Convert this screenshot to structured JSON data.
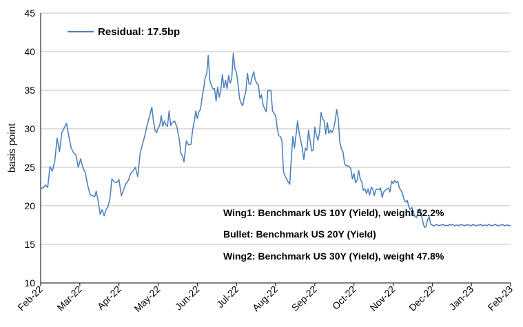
{
  "chart_data": {
    "type": "line",
    "title": "",
    "xlabel": "",
    "ylabel": "basis point",
    "ylim": [
      10,
      45
    ],
    "yticks": [
      "10",
      "15",
      "20",
      "25",
      "30",
      "35",
      "40",
      "45"
    ],
    "x_tick_labels": [
      "Feb-22",
      "Mar-22",
      "Apr-22",
      "May-22",
      "Jun-22",
      "Jul-22",
      "Aug-22",
      "Sep-22",
      "Oct-22",
      "Nov-22",
      "Dec-22",
      "Jan-23",
      "Feb-23"
    ],
    "grid": "horizontal",
    "legend_position": "top-left",
    "line_color": "#4F81BD",
    "annotations": [
      "Wing1: Benchmark US 10Y (Yield), weight 52.2%",
      "Bullet: Benchmark US 20Y (Yield)",
      "Wing2: Benchmark US 30Y (Yield), weight 47.8%"
    ],
    "series": [
      {
        "name": "Residual: 17.5bp",
        "points": [
          [
            0.0,
            22.3
          ],
          [
            0.04,
            22.3
          ],
          [
            0.08,
            22.4
          ],
          [
            0.12,
            22.7
          ],
          [
            0.18,
            22.4
          ],
          [
            0.24,
            25.1
          ],
          [
            0.3,
            24.5
          ],
          [
            0.36,
            25.8
          ],
          [
            0.42,
            28.8
          ],
          [
            0.48,
            27.0
          ],
          [
            0.54,
            29.5
          ],
          [
            0.6,
            30.1
          ],
          [
            0.66,
            30.7
          ],
          [
            0.72,
            29.0
          ],
          [
            0.78,
            27.5
          ],
          [
            0.84,
            26.9
          ],
          [
            0.9,
            26.6
          ],
          [
            0.96,
            25.0
          ],
          [
            1.02,
            26.1
          ],
          [
            1.08,
            24.9
          ],
          [
            1.14,
            24.3
          ],
          [
            1.2,
            22.7
          ],
          [
            1.26,
            21.5
          ],
          [
            1.32,
            21.3
          ],
          [
            1.38,
            21.2
          ],
          [
            1.42,
            21.9
          ],
          [
            1.47,
            20.6
          ],
          [
            1.52,
            18.9
          ],
          [
            1.57,
            19.5
          ],
          [
            1.62,
            18.7
          ],
          [
            1.67,
            19.5
          ],
          [
            1.72,
            19.9
          ],
          [
            1.77,
            21.0
          ],
          [
            1.82,
            23.5
          ],
          [
            1.88,
            23.1
          ],
          [
            1.94,
            23.0
          ],
          [
            2.0,
            23.4
          ],
          [
            2.06,
            21.3
          ],
          [
            2.12,
            22.1
          ],
          [
            2.18,
            22.9
          ],
          [
            2.24,
            23.3
          ],
          [
            2.3,
            24.2
          ],
          [
            2.36,
            24.5
          ],
          [
            2.42,
            25.0
          ],
          [
            2.48,
            23.8
          ],
          [
            2.54,
            26.8
          ],
          [
            2.6,
            28.0
          ],
          [
            2.66,
            29.1
          ],
          [
            2.72,
            30.5
          ],
          [
            2.78,
            31.6
          ],
          [
            2.84,
            32.8
          ],
          [
            2.88,
            31.0
          ],
          [
            2.92,
            29.8
          ],
          [
            2.96,
            29.5
          ],
          [
            3.0,
            30.1
          ],
          [
            3.04,
            30.4
          ],
          [
            3.08,
            31.7
          ],
          [
            3.12,
            30.3
          ],
          [
            3.16,
            31.0
          ],
          [
            3.2,
            30.5
          ],
          [
            3.24,
            30.3
          ],
          [
            3.28,
            32.3
          ],
          [
            3.32,
            30.4
          ],
          [
            3.36,
            30.8
          ],
          [
            3.42,
            31.0
          ],
          [
            3.48,
            30.2
          ],
          [
            3.54,
            28.6
          ],
          [
            3.58,
            26.8
          ],
          [
            3.62,
            26.5
          ],
          [
            3.66,
            25.7
          ],
          [
            3.72,
            28.4
          ],
          [
            3.78,
            27.9
          ],
          [
            3.84,
            28.0
          ],
          [
            3.88,
            29.8
          ],
          [
            3.92,
            30.9
          ],
          [
            3.96,
            32.3
          ],
          [
            4.0,
            31.3
          ],
          [
            4.04,
            32.2
          ],
          [
            4.08,
            32.5
          ],
          [
            4.12,
            34.0
          ],
          [
            4.16,
            35.1
          ],
          [
            4.2,
            36.6
          ],
          [
            4.24,
            37.1
          ],
          [
            4.28,
            39.5
          ],
          [
            4.32,
            36.3
          ],
          [
            4.36,
            35.6
          ],
          [
            4.4,
            35.2
          ],
          [
            4.44,
            35.2
          ],
          [
            4.48,
            33.6
          ],
          [
            4.52,
            35.4
          ],
          [
            4.56,
            34.1
          ],
          [
            4.6,
            35.0
          ],
          [
            4.64,
            37.0
          ],
          [
            4.68,
            35.3
          ],
          [
            4.72,
            36.3
          ],
          [
            4.76,
            35.2
          ],
          [
            4.8,
            36.9
          ],
          [
            4.84,
            35.9
          ],
          [
            4.88,
            36.5
          ],
          [
            4.92,
            39.8
          ],
          [
            4.96,
            37.8
          ],
          [
            5.0,
            37.3
          ],
          [
            5.04,
            35.8
          ],
          [
            5.08,
            33.9
          ],
          [
            5.12,
            33.3
          ],
          [
            5.16,
            33.0
          ],
          [
            5.2,
            34.1
          ],
          [
            5.24,
            34.8
          ],
          [
            5.28,
            37.2
          ],
          [
            5.32,
            35.8
          ],
          [
            5.36,
            35.8
          ],
          [
            5.4,
            36.7
          ],
          [
            5.44,
            37.4
          ],
          [
            5.48,
            36.3
          ],
          [
            5.52,
            35.9
          ],
          [
            5.56,
            35.7
          ],
          [
            5.6,
            33.9
          ],
          [
            5.64,
            34.4
          ],
          [
            5.68,
            33.1
          ],
          [
            5.72,
            32.6
          ],
          [
            5.76,
            32.2
          ],
          [
            5.8,
            34.9
          ],
          [
            5.84,
            35.0
          ],
          [
            5.88,
            34.9
          ],
          [
            5.92,
            32.3
          ],
          [
            5.96,
            32.0
          ],
          [
            6.0,
            31.7
          ],
          [
            6.04,
            30.1
          ],
          [
            6.08,
            29.1
          ],
          [
            6.12,
            29.0
          ],
          [
            6.16,
            28.5
          ],
          [
            6.2,
            24.4
          ],
          [
            6.24,
            23.9
          ],
          [
            6.28,
            23.5
          ],
          [
            6.32,
            23.1
          ],
          [
            6.36,
            22.8
          ],
          [
            6.4,
            26.1
          ],
          [
            6.44,
            29.0
          ],
          [
            6.48,
            27.5
          ],
          [
            6.52,
            29.2
          ],
          [
            6.56,
            31.0
          ],
          [
            6.6,
            29.5
          ],
          [
            6.64,
            28.5
          ],
          [
            6.68,
            27.5
          ],
          [
            6.72,
            26.0
          ],
          [
            6.76,
            27.5
          ],
          [
            6.8,
            27.2
          ],
          [
            6.84,
            29.8
          ],
          [
            6.88,
            28.5
          ],
          [
            6.92,
            27.1
          ],
          [
            6.96,
            27.3
          ],
          [
            7.0,
            30.2
          ],
          [
            7.04,
            29.2
          ],
          [
            7.08,
            28.5
          ],
          [
            7.12,
            29.5
          ],
          [
            7.16,
            32.1
          ],
          [
            7.2,
            31.3
          ],
          [
            7.24,
            31.0
          ],
          [
            7.28,
            29.3
          ],
          [
            7.32,
            30.8
          ],
          [
            7.36,
            29.4
          ],
          [
            7.4,
            29.8
          ],
          [
            7.44,
            29.5
          ],
          [
            7.48,
            30.0
          ],
          [
            7.52,
            31.0
          ],
          [
            7.56,
            32.5
          ],
          [
            7.6,
            31.3
          ],
          [
            7.64,
            28.2
          ],
          [
            7.68,
            27.4
          ],
          [
            7.72,
            27.0
          ],
          [
            7.76,
            25.5
          ],
          [
            7.8,
            25.2
          ],
          [
            7.84,
            25.2
          ],
          [
            7.88,
            25.1
          ],
          [
            7.92,
            24.8
          ],
          [
            7.96,
            23.5
          ],
          [
            8.0,
            24.2
          ],
          [
            8.04,
            23.0
          ],
          [
            8.08,
            23.3
          ],
          [
            8.12,
            24.6
          ],
          [
            8.16,
            23.5
          ],
          [
            8.2,
            23.1
          ],
          [
            8.24,
            22.0
          ],
          [
            8.28,
            22.2
          ],
          [
            8.32,
            21.6
          ],
          [
            8.36,
            22.2
          ],
          [
            8.4,
            21.4
          ],
          [
            8.44,
            22.4
          ],
          [
            8.48,
            22.2
          ],
          [
            8.52,
            21.3
          ],
          [
            8.56,
            22.1
          ],
          [
            8.6,
            22.2
          ],
          [
            8.64,
            22.1
          ],
          [
            8.68,
            22.3
          ],
          [
            8.72,
            21.1
          ],
          [
            8.76,
            21.8
          ],
          [
            8.8,
            22.0
          ],
          [
            8.84,
            22.2
          ],
          [
            8.88,
            22.3
          ],
          [
            8.92,
            21.8
          ],
          [
            8.96,
            23.2
          ],
          [
            9.0,
            22.9
          ],
          [
            9.04,
            23.3
          ],
          [
            9.08,
            23.0
          ],
          [
            9.12,
            23.2
          ],
          [
            9.16,
            22.3
          ],
          [
            9.2,
            22.0
          ],
          [
            9.24,
            21.6
          ],
          [
            9.28,
            20.8
          ],
          [
            9.32,
            20.5
          ],
          [
            9.36,
            20.7
          ],
          [
            9.4,
            19.9
          ],
          [
            9.44,
            19.5
          ],
          [
            9.48,
            19.8
          ],
          [
            9.52,
            19.1
          ],
          [
            9.56,
            18.6
          ],
          [
            9.6,
            18.5
          ],
          [
            9.64,
            19.3
          ],
          [
            9.68,
            19.6
          ],
          [
            9.72,
            18.9
          ],
          [
            9.76,
            17.9
          ],
          [
            9.8,
            17.2
          ],
          [
            9.84,
            17.3
          ],
          [
            9.88,
            18.2
          ],
          [
            9.92,
            18.6
          ],
          [
            9.96,
            17.6
          ],
          [
            10.0,
            17.5
          ],
          [
            10.04,
            17.4
          ],
          [
            10.08,
            17.5
          ],
          [
            10.12,
            17.6
          ],
          [
            10.16,
            17.4
          ],
          [
            10.2,
            17.5
          ],
          [
            10.24,
            17.5
          ],
          [
            10.28,
            17.6
          ],
          [
            10.32,
            17.4
          ],
          [
            10.36,
            17.5
          ],
          [
            10.4,
            17.4
          ],
          [
            10.44,
            17.6
          ],
          [
            10.48,
            17.5
          ],
          [
            10.52,
            17.6
          ],
          [
            10.56,
            17.4
          ],
          [
            10.6,
            17.5
          ],
          [
            10.64,
            17.5
          ],
          [
            10.68,
            17.4
          ],
          [
            10.72,
            17.6
          ],
          [
            10.76,
            17.5
          ],
          [
            10.8,
            17.5
          ],
          [
            10.84,
            17.4
          ],
          [
            10.88,
            17.6
          ],
          [
            10.92,
            17.5
          ],
          [
            10.96,
            17.5
          ],
          [
            11.0,
            17.4
          ],
          [
            11.04,
            17.6
          ],
          [
            11.08,
            17.5
          ],
          [
            11.12,
            17.4
          ],
          [
            11.16,
            17.5
          ],
          [
            11.2,
            17.5
          ],
          [
            11.24,
            17.6
          ],
          [
            11.28,
            17.4
          ],
          [
            11.32,
            17.5
          ],
          [
            11.36,
            17.5
          ],
          [
            11.4,
            17.4
          ],
          [
            11.44,
            17.6
          ],
          [
            11.48,
            17.5
          ],
          [
            11.52,
            17.4
          ],
          [
            11.56,
            17.5
          ],
          [
            11.6,
            17.6
          ],
          [
            11.64,
            17.5
          ],
          [
            11.68,
            17.4
          ],
          [
            11.72,
            17.5
          ],
          [
            11.76,
            17.5
          ],
          [
            11.8,
            17.6
          ],
          [
            11.84,
            17.4
          ],
          [
            11.88,
            17.5
          ],
          [
            11.92,
            17.5
          ],
          [
            11.96,
            17.4
          ],
          [
            12.0,
            17.5
          ]
        ]
      }
    ]
  }
}
